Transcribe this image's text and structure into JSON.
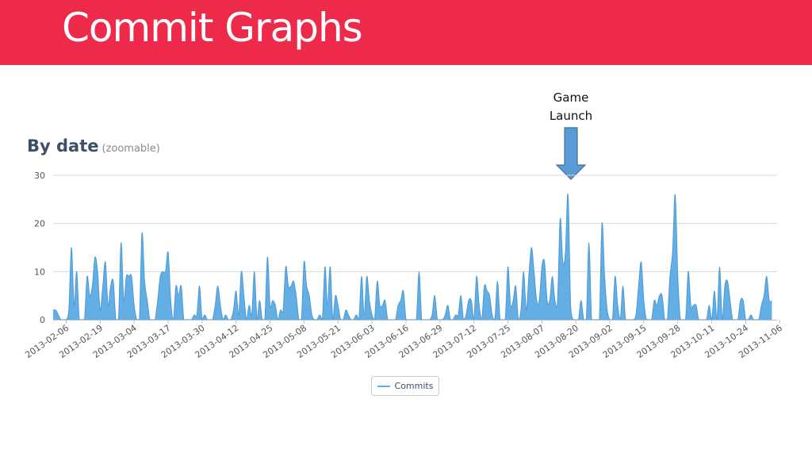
{
  "slide": {
    "title": "Commit Graphs",
    "banner_color": "#ee2a4b",
    "annotation": {
      "lines": [
        "Game",
        "Launch"
      ],
      "arrow_color": "#5b9bd5",
      "arrow_icon": "down-arrow-icon"
    }
  },
  "chart_data": {
    "type": "area",
    "title": "By date",
    "subtitle": "(zoomable)",
    "xlabel": "",
    "ylabel": "",
    "ylim": [
      0,
      30
    ],
    "yticks": [
      0,
      10,
      20,
      30
    ],
    "grid": true,
    "legend_position": "bottom-center",
    "area_color": "#63aee4",
    "line_color": "#4a9ad8",
    "xlim": [
      "2013-02-01",
      "2013-11-05"
    ],
    "xtick_labels": [
      "2013-02-06",
      "2013-02-19",
      "2013-03-04",
      "2013-03-17",
      "2013-03-30",
      "2013-04-12",
      "2013-04-25",
      "2013-05-08",
      "2013-05-21",
      "2013-06-03",
      "2013-06-16",
      "2013-06-29",
      "2013-07-12",
      "2013-07-25",
      "2013-08-07",
      "2013-08-20",
      "2013-09-02",
      "2013-09-15",
      "2013-09-28",
      "2013-10-11",
      "2013-10-24",
      "2013-11-06"
    ],
    "series": [
      {
        "name": "Commits",
        "points": [
          [
            "2013-02-01",
            2
          ],
          [
            "2013-02-02",
            2
          ],
          [
            "2013-02-03",
            1
          ],
          [
            "2013-02-04",
            0
          ],
          [
            "2013-02-05",
            0
          ],
          [
            "2013-02-06",
            0
          ],
          [
            "2013-02-07",
            2
          ],
          [
            "2013-02-08",
            15
          ],
          [
            "2013-02-09",
            3
          ],
          [
            "2013-02-10",
            10
          ],
          [
            "2013-02-11",
            0
          ],
          [
            "2013-02-12",
            0
          ],
          [
            "2013-02-13",
            0
          ],
          [
            "2013-02-14",
            9
          ],
          [
            "2013-02-15",
            5
          ],
          [
            "2013-02-16",
            7
          ],
          [
            "2013-02-17",
            13
          ],
          [
            "2013-02-18",
            10
          ],
          [
            "2013-02-19",
            2
          ],
          [
            "2013-02-20",
            7
          ],
          [
            "2013-02-21",
            12
          ],
          [
            "2013-02-22",
            3
          ],
          [
            "2013-02-23",
            7
          ],
          [
            "2013-02-24",
            8
          ],
          [
            "2013-02-25",
            0
          ],
          [
            "2013-02-26",
            0
          ],
          [
            "2013-02-27",
            16
          ],
          [
            "2013-02-28",
            4
          ],
          [
            "2013-03-01",
            9
          ],
          [
            "2013-03-02",
            9
          ],
          [
            "2013-03-03",
            9
          ],
          [
            "2013-03-04",
            3
          ],
          [
            "2013-03-05",
            0
          ],
          [
            "2013-03-06",
            0
          ],
          [
            "2013-03-07",
            18
          ],
          [
            "2013-03-08",
            8
          ],
          [
            "2013-03-09",
            4
          ],
          [
            "2013-03-10",
            0
          ],
          [
            "2013-03-11",
            0
          ],
          [
            "2013-03-12",
            0
          ],
          [
            "2013-03-13",
            4
          ],
          [
            "2013-03-14",
            9
          ],
          [
            "2013-03-15",
            10
          ],
          [
            "2013-03-16",
            10
          ],
          [
            "2013-03-17",
            14
          ],
          [
            "2013-03-18",
            4
          ],
          [
            "2013-03-19",
            0
          ],
          [
            "2013-03-20",
            7
          ],
          [
            "2013-03-21",
            5
          ],
          [
            "2013-03-22",
            7
          ],
          [
            "2013-03-23",
            0
          ],
          [
            "2013-03-24",
            0
          ],
          [
            "2013-03-25",
            0
          ],
          [
            "2013-03-26",
            0
          ],
          [
            "2013-03-27",
            1
          ],
          [
            "2013-03-28",
            1
          ],
          [
            "2013-03-29",
            7
          ],
          [
            "2013-03-30",
            0
          ],
          [
            "2013-03-31",
            1
          ],
          [
            "2013-04-01",
            0
          ],
          [
            "2013-04-02",
            0
          ],
          [
            "2013-04-03",
            0
          ],
          [
            "2013-04-04",
            3
          ],
          [
            "2013-04-05",
            7
          ],
          [
            "2013-04-06",
            3
          ],
          [
            "2013-04-07",
            0
          ],
          [
            "2013-04-08",
            1
          ],
          [
            "2013-04-09",
            0
          ],
          [
            "2013-04-10",
            0
          ],
          [
            "2013-04-11",
            2
          ],
          [
            "2013-04-12",
            6
          ],
          [
            "2013-04-13",
            1
          ],
          [
            "2013-04-14",
            10
          ],
          [
            "2013-04-15",
            5
          ],
          [
            "2013-04-16",
            0
          ],
          [
            "2013-04-17",
            3
          ],
          [
            "2013-04-18",
            1
          ],
          [
            "2013-04-19",
            10
          ],
          [
            "2013-04-20",
            0
          ],
          [
            "2013-04-21",
            4
          ],
          [
            "2013-04-22",
            0
          ],
          [
            "2013-04-23",
            0
          ],
          [
            "2013-04-24",
            13
          ],
          [
            "2013-04-25",
            3
          ],
          [
            "2013-04-26",
            4
          ],
          [
            "2013-04-27",
            3
          ],
          [
            "2013-04-28",
            0
          ],
          [
            "2013-04-29",
            2
          ],
          [
            "2013-04-30",
            2
          ],
          [
            "2013-05-01",
            11
          ],
          [
            "2013-05-02",
            7
          ],
          [
            "2013-05-03",
            7
          ],
          [
            "2013-05-04",
            8
          ],
          [
            "2013-05-05",
            5
          ],
          [
            "2013-05-06",
            0
          ],
          [
            "2013-05-07",
            0
          ],
          [
            "2013-05-08",
            12
          ],
          [
            "2013-05-09",
            7
          ],
          [
            "2013-05-10",
            5
          ],
          [
            "2013-05-11",
            1
          ],
          [
            "2013-05-12",
            0
          ],
          [
            "2013-05-13",
            0
          ],
          [
            "2013-05-14",
            1
          ],
          [
            "2013-05-15",
            0
          ],
          [
            "2013-05-16",
            11
          ],
          [
            "2013-05-17",
            3
          ],
          [
            "2013-05-18",
            11
          ],
          [
            "2013-05-19",
            0
          ],
          [
            "2013-05-20",
            5
          ],
          [
            "2013-05-21",
            3
          ],
          [
            "2013-05-22",
            0
          ],
          [
            "2013-05-23",
            0
          ],
          [
            "2013-05-24",
            2
          ],
          [
            "2013-05-25",
            1
          ],
          [
            "2013-05-26",
            0
          ],
          [
            "2013-05-27",
            0
          ],
          [
            "2013-05-28",
            1
          ],
          [
            "2013-05-29",
            0
          ],
          [
            "2013-05-30",
            9
          ],
          [
            "2013-05-31",
            1
          ],
          [
            "2013-06-01",
            9
          ],
          [
            "2013-06-02",
            4
          ],
          [
            "2013-06-03",
            1
          ],
          [
            "2013-06-04",
            0
          ],
          [
            "2013-06-05",
            8
          ],
          [
            "2013-06-06",
            3
          ],
          [
            "2013-06-07",
            3
          ],
          [
            "2013-06-08",
            4
          ],
          [
            "2013-06-09",
            0
          ],
          [
            "2013-06-10",
            0
          ],
          [
            "2013-06-11",
            0
          ],
          [
            "2013-06-12",
            0
          ],
          [
            "2013-06-13",
            3
          ],
          [
            "2013-06-14",
            4
          ],
          [
            "2013-06-15",
            6
          ],
          [
            "2013-06-16",
            0
          ],
          [
            "2013-06-17",
            0
          ],
          [
            "2013-06-18",
            0
          ],
          [
            "2013-06-19",
            0
          ],
          [
            "2013-06-20",
            0
          ],
          [
            "2013-06-21",
            10
          ],
          [
            "2013-06-22",
            0
          ],
          [
            "2013-06-23",
            0
          ],
          [
            "2013-06-24",
            0
          ],
          [
            "2013-06-25",
            0
          ],
          [
            "2013-06-26",
            1
          ],
          [
            "2013-06-27",
            5
          ],
          [
            "2013-06-28",
            0
          ],
          [
            "2013-06-29",
            0
          ],
          [
            "2013-06-30",
            0
          ],
          [
            "2013-07-01",
            1
          ],
          [
            "2013-07-02",
            3
          ],
          [
            "2013-07-03",
            0
          ],
          [
            "2013-07-04",
            0
          ],
          [
            "2013-07-05",
            1
          ],
          [
            "2013-07-06",
            1
          ],
          [
            "2013-07-07",
            5
          ],
          [
            "2013-07-08",
            0
          ],
          [
            "2013-07-09",
            1
          ],
          [
            "2013-07-10",
            4
          ],
          [
            "2013-07-11",
            4
          ],
          [
            "2013-07-12",
            0
          ],
          [
            "2013-07-13",
            9
          ],
          [
            "2013-07-14",
            3
          ],
          [
            "2013-07-15",
            0
          ],
          [
            "2013-07-16",
            7
          ],
          [
            "2013-07-17",
            6
          ],
          [
            "2013-07-18",
            5
          ],
          [
            "2013-07-19",
            1
          ],
          [
            "2013-07-20",
            0
          ],
          [
            "2013-07-21",
            8
          ],
          [
            "2013-07-22",
            0
          ],
          [
            "2013-07-23",
            0
          ],
          [
            "2013-07-24",
            0
          ],
          [
            "2013-07-25",
            11
          ],
          [
            "2013-07-26",
            3
          ],
          [
            "2013-07-27",
            4
          ],
          [
            "2013-07-28",
            7
          ],
          [
            "2013-07-29",
            0
          ],
          [
            "2013-07-30",
            2
          ],
          [
            "2013-07-31",
            10
          ],
          [
            "2013-08-01",
            2
          ],
          [
            "2013-08-02",
            9
          ],
          [
            "2013-08-03",
            15
          ],
          [
            "2013-08-04",
            10
          ],
          [
            "2013-08-05",
            4
          ],
          [
            "2013-08-06",
            4
          ],
          [
            "2013-08-07",
            11
          ],
          [
            "2013-08-08",
            12
          ],
          [
            "2013-08-09",
            4
          ],
          [
            "2013-08-10",
            4
          ],
          [
            "2013-08-11",
            9
          ],
          [
            "2013-08-12",
            4
          ],
          [
            "2013-08-13",
            4
          ],
          [
            "2013-08-14",
            21
          ],
          [
            "2013-08-15",
            12
          ],
          [
            "2013-08-16",
            14
          ],
          [
            "2013-08-17",
            26
          ],
          [
            "2013-08-18",
            3
          ],
          [
            "2013-08-19",
            0
          ],
          [
            "2013-08-20",
            0
          ],
          [
            "2013-08-21",
            0
          ],
          [
            "2013-08-22",
            4
          ],
          [
            "2013-08-23",
            0
          ],
          [
            "2013-08-24",
            0
          ],
          [
            "2013-08-25",
            16
          ],
          [
            "2013-08-26",
            0
          ],
          [
            "2013-08-27",
            0
          ],
          [
            "2013-08-28",
            0
          ],
          [
            "2013-08-29",
            0
          ],
          [
            "2013-08-30",
            20
          ],
          [
            "2013-08-31",
            9
          ],
          [
            "2013-09-01",
            2
          ],
          [
            "2013-09-02",
            0
          ],
          [
            "2013-09-03",
            0
          ],
          [
            "2013-09-04",
            9
          ],
          [
            "2013-09-05",
            3
          ],
          [
            "2013-09-06",
            0
          ],
          [
            "2013-09-07",
            7
          ],
          [
            "2013-09-08",
            0
          ],
          [
            "2013-09-09",
            0
          ],
          [
            "2013-09-10",
            0
          ],
          [
            "2013-09-11",
            0
          ],
          [
            "2013-09-12",
            1
          ],
          [
            "2013-09-13",
            7
          ],
          [
            "2013-09-14",
            12
          ],
          [
            "2013-09-15",
            4
          ],
          [
            "2013-09-16",
            0
          ],
          [
            "2013-09-17",
            0
          ],
          [
            "2013-09-18",
            0
          ],
          [
            "2013-09-19",
            4
          ],
          [
            "2013-09-20",
            3
          ],
          [
            "2013-09-21",
            5
          ],
          [
            "2013-09-22",
            5
          ],
          [
            "2013-09-23",
            0
          ],
          [
            "2013-09-24",
            0
          ],
          [
            "2013-09-25",
            9
          ],
          [
            "2013-09-26",
            14
          ],
          [
            "2013-09-27",
            26
          ],
          [
            "2013-09-28",
            9
          ],
          [
            "2013-09-29",
            0
          ],
          [
            "2013-09-30",
            0
          ],
          [
            "2013-10-01",
            0
          ],
          [
            "2013-10-02",
            10
          ],
          [
            "2013-10-03",
            3
          ],
          [
            "2013-10-04",
            3
          ],
          [
            "2013-10-05",
            3
          ],
          [
            "2013-10-06",
            0
          ],
          [
            "2013-10-07",
            0
          ],
          [
            "2013-10-08",
            0
          ],
          [
            "2013-10-09",
            0
          ],
          [
            "2013-10-10",
            3
          ],
          [
            "2013-10-11",
            0
          ],
          [
            "2013-10-12",
            6
          ],
          [
            "2013-10-13",
            0
          ],
          [
            "2013-10-14",
            11
          ],
          [
            "2013-10-15",
            0
          ],
          [
            "2013-10-16",
            7
          ],
          [
            "2013-10-17",
            8
          ],
          [
            "2013-10-18",
            4
          ],
          [
            "2013-10-19",
            0
          ],
          [
            "2013-10-20",
            0
          ],
          [
            "2013-10-21",
            0
          ],
          [
            "2013-10-22",
            4
          ],
          [
            "2013-10-23",
            4
          ],
          [
            "2013-10-24",
            0
          ],
          [
            "2013-10-25",
            0
          ],
          [
            "2013-10-26",
            1
          ],
          [
            "2013-10-27",
            0
          ],
          [
            "2013-10-28",
            0
          ],
          [
            "2013-10-29",
            0
          ],
          [
            "2013-10-30",
            3
          ],
          [
            "2013-10-31",
            5
          ],
          [
            "2013-11-01",
            9
          ],
          [
            "2013-11-02",
            4
          ],
          [
            "2013-11-03",
            4
          ]
        ]
      }
    ]
  }
}
